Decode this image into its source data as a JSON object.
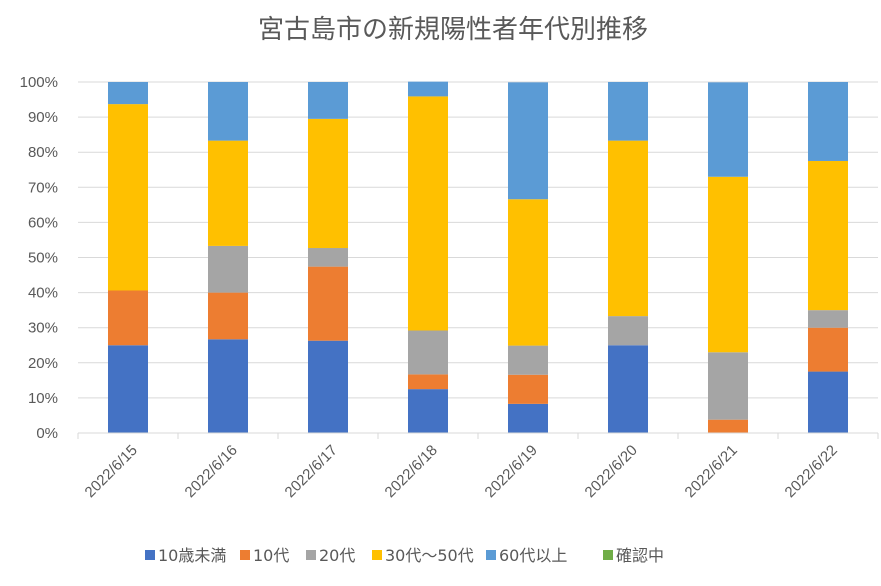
{
  "chart_data": {
    "type": "bar",
    "stacked": "percent",
    "title": "宮古島市の新規陽性者年代別推移",
    "xlabel": "",
    "ylabel": "",
    "ylim": [
      0,
      100
    ],
    "yticks": [
      "0%",
      "10%",
      "20%",
      "30%",
      "40%",
      "50%",
      "60%",
      "70%",
      "80%",
      "90%",
      "100%"
    ],
    "grid": true,
    "legend_position": "bottom",
    "categories": [
      "2022/6/15",
      "2022/6/16",
      "2022/6/17",
      "2022/6/18",
      "2022/6/19",
      "2022/6/20",
      "2022/6/21",
      "2022/6/22"
    ],
    "series": [
      {
        "name": "10歳未満",
        "color": "#4472C4",
        "values": [
          25.0,
          26.7,
          26.3,
          12.5,
          8.3,
          25.0,
          0.0,
          17.5
        ]
      },
      {
        "name": "10代",
        "color": "#ED7D31",
        "values": [
          15.6,
          13.3,
          21.1,
          4.2,
          8.3,
          0.0,
          3.8,
          12.5
        ]
      },
      {
        "name": "20代",
        "color": "#A5A5A5",
        "values": [
          0.0,
          13.3,
          5.3,
          12.5,
          8.3,
          8.3,
          19.2,
          5.0
        ]
      },
      {
        "name": "30代～50代",
        "color": "#FFC000",
        "values": [
          53.1,
          30.0,
          36.8,
          66.7,
          41.7,
          50.0,
          50.0,
          42.5
        ]
      },
      {
        "name": "60代以上",
        "color": "#5B9BD5",
        "values": [
          6.3,
          16.7,
          10.5,
          4.2,
          33.3,
          16.7,
          26.9,
          22.5
        ]
      },
      {
        "name": "確認中",
        "color": "#70AD47",
        "values": [
          0,
          0,
          0,
          0,
          0,
          0,
          0,
          0
        ]
      }
    ]
  }
}
